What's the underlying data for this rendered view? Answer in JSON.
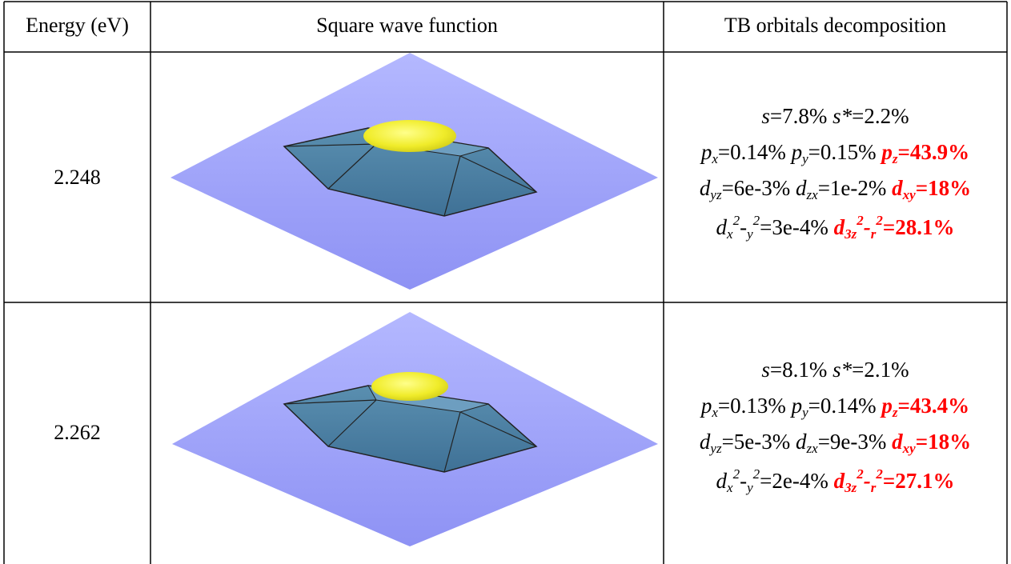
{
  "table": {
    "header": [
      "Energy (eV)",
      "Square wave function",
      "TB orbitals decomposition"
    ],
    "rows": [
      {
        "energy": "2.248",
        "lines": [
          [
            {
              "t": "s",
              "f": "i"
            },
            {
              "t": "=7.8% ",
              "f": "n"
            },
            {
              "t": "s*",
              "f": "i"
            },
            {
              "t": "=2.2%",
              "f": "n"
            }
          ],
          [
            {
              "t": "p",
              "f": "i"
            },
            {
              "t": "x",
              "f": "i sub"
            },
            {
              "t": "=0.14% ",
              "f": "n"
            },
            {
              "t": "p",
              "f": "i"
            },
            {
              "t": "y",
              "f": "i sub"
            },
            {
              "t": "=0.15% ",
              "f": "n"
            },
            {
              "t": "p",
              "f": "i b"
            },
            {
              "t": "z",
              "f": "i b sub"
            },
            {
              "t": "=43.9%",
              "f": "b"
            }
          ],
          [
            {
              "t": "d",
              "f": "i"
            },
            {
              "t": "yz",
              "f": "i sub"
            },
            {
              "t": "=6e-3% ",
              "f": "n"
            },
            {
              "t": "d",
              "f": "i"
            },
            {
              "t": "zx",
              "f": "i sub"
            },
            {
              "t": "=1e-2% ",
              "f": "n"
            },
            {
              "t": "d",
              "f": "i b"
            },
            {
              "t": "xy",
              "f": "i b sub"
            },
            {
              "t": "=18%",
              "f": "b"
            }
          ],
          [
            {
              "t": "d",
              "f": "i"
            },
            {
              "t": "x",
              "f": "i sub"
            },
            {
              "t": "2",
              "f": "i sup"
            },
            {
              "t": "-",
              "f": "n"
            },
            {
              "t": "y",
              "f": "i sub"
            },
            {
              "t": "2",
              "f": "i sup"
            },
            {
              "t": "=3e-4% ",
              "f": "n"
            },
            {
              "t": "d",
              "f": "i b"
            },
            {
              "t": "3z",
              "f": "i b sub"
            },
            {
              "t": "2",
              "f": "i b sup"
            },
            {
              "t": "-",
              "f": "i b"
            },
            {
              "t": "r",
              "f": "i b sub"
            },
            {
              "t": "2",
              "f": "i b sup"
            },
            {
              "t": "=28.1%",
              "f": "b"
            }
          ]
        ]
      },
      {
        "energy": "2.262",
        "lines": [
          [
            {
              "t": "s",
              "f": "i"
            },
            {
              "t": "=8.1% ",
              "f": "n"
            },
            {
              "t": "s*",
              "f": "i"
            },
            {
              "t": "=2.1%",
              "f": "n"
            }
          ],
          [
            {
              "t": "p",
              "f": "i"
            },
            {
              "t": "x",
              "f": "i sub"
            },
            {
              "t": "=0.13% ",
              "f": "n"
            },
            {
              "t": "p",
              "f": "i"
            },
            {
              "t": "y",
              "f": "i sub"
            },
            {
              "t": "=0.14% ",
              "f": "n"
            },
            {
              "t": "p",
              "f": "i b"
            },
            {
              "t": "z",
              "f": "i b sub"
            },
            {
              "t": "=43.4%",
              "f": "b"
            }
          ],
          [
            {
              "t": "d",
              "f": "i"
            },
            {
              "t": "yz",
              "f": "i sub"
            },
            {
              "t": "=5e-3% ",
              "f": "n"
            },
            {
              "t": "d",
              "f": "i"
            },
            {
              "t": "zx",
              "f": "i sub"
            },
            {
              "t": "=9e-3% ",
              "f": "n"
            },
            {
              "t": "d",
              "f": "i b"
            },
            {
              "t": "xy",
              "f": "i b sub"
            },
            {
              "t": "=18%",
              "f": "b"
            }
          ],
          [
            {
              "t": "d",
              "f": "i"
            },
            {
              "t": "x",
              "f": "i sub"
            },
            {
              "t": "2",
              "f": "i sup"
            },
            {
              "t": "-",
              "f": "n"
            },
            {
              "t": "y",
              "f": "i sub"
            },
            {
              "t": "2",
              "f": "i sup"
            },
            {
              "t": "=2e-4% ",
              "f": "n"
            },
            {
              "t": "d",
              "f": "i b"
            },
            {
              "t": "3z",
              "f": "i b sub"
            },
            {
              "t": "2",
              "f": "i b sup"
            },
            {
              "t": "-",
              "f": "i b"
            },
            {
              "t": "r",
              "f": "i b sub"
            },
            {
              "t": "2",
              "f": "i b sup"
            },
            {
              "t": "=27.1%",
              "f": "b"
            }
          ]
        ]
      }
    ]
  }
}
